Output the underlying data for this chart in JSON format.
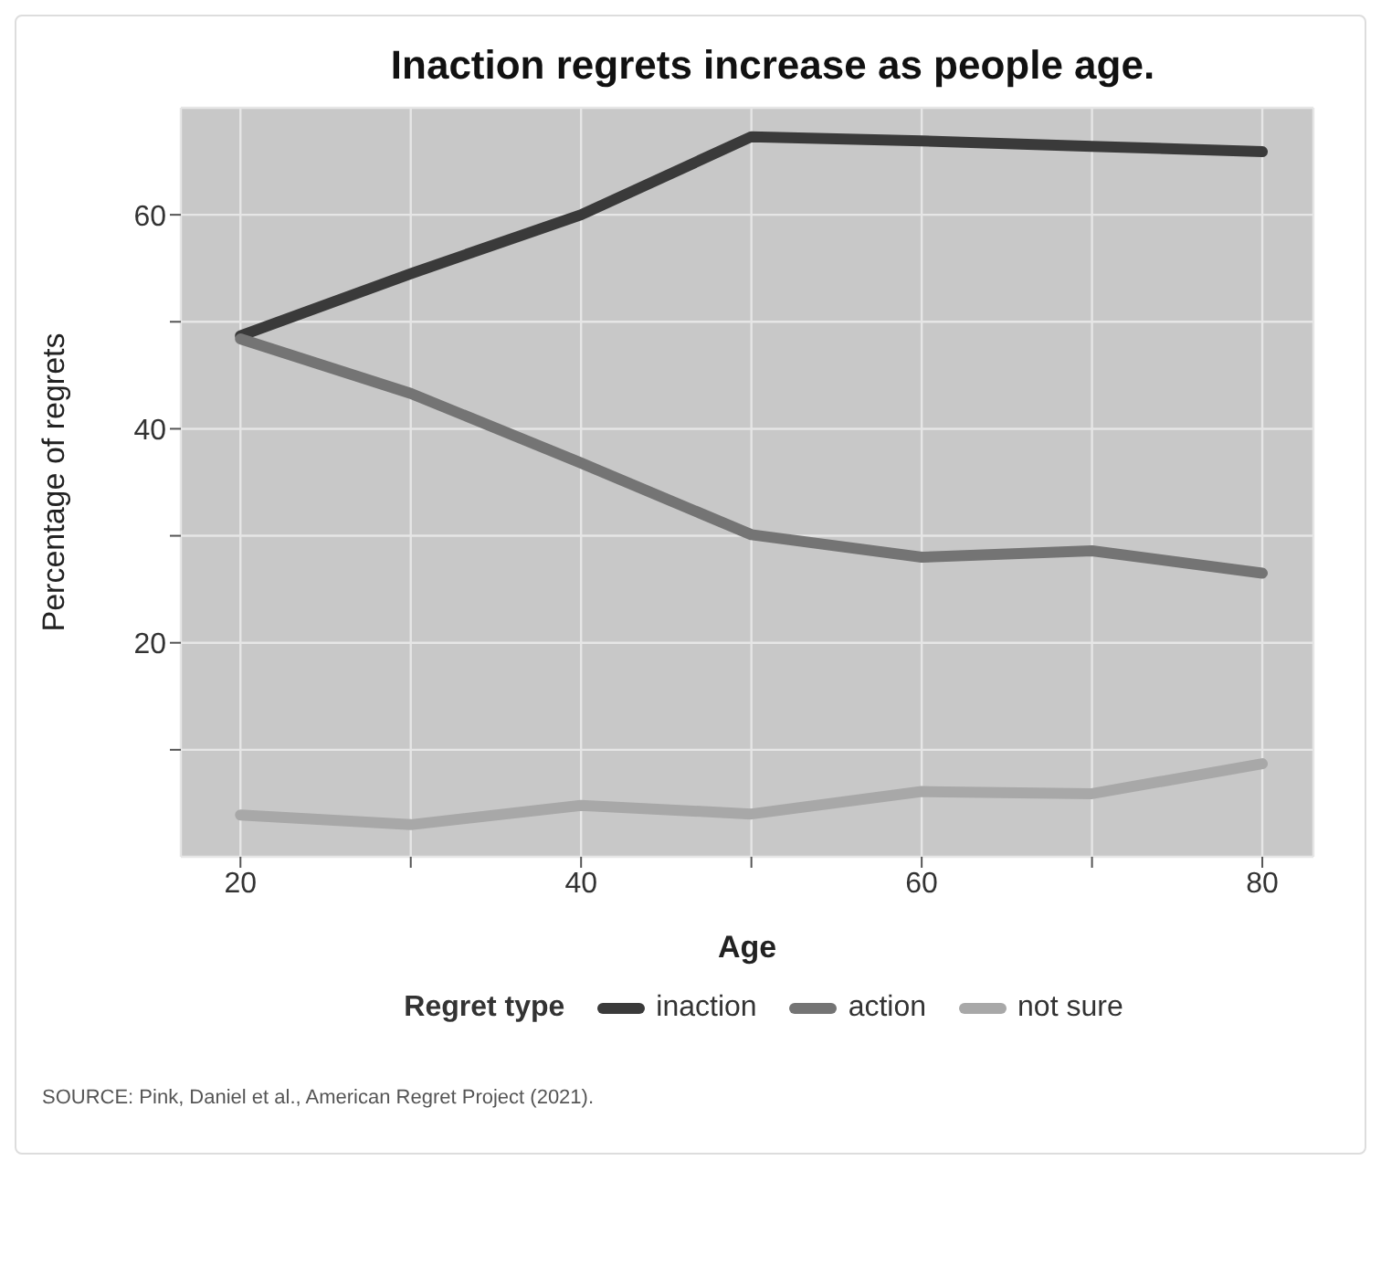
{
  "chart_data": {
    "type": "line",
    "title": "Inaction regrets increase as people age.",
    "xlabel": "Age",
    "ylabel": "Percentage of regrets",
    "legend_title": "Regret type",
    "x": [
      20,
      30,
      40,
      50,
      60,
      70,
      80
    ],
    "series": [
      {
        "name": "inaction",
        "color": "#3a3a3a",
        "values": [
          48.7,
          54.5,
          60,
          67.3,
          66.9,
          66.4,
          65.9
        ]
      },
      {
        "name": "action",
        "color": "#747474",
        "values": [
          48.4,
          43.3,
          36.8,
          30.1,
          28.0,
          28.6,
          26.5
        ]
      },
      {
        "name": "not sure",
        "color": "#a8a8a8",
        "values": [
          3.9,
          3.0,
          4.8,
          4.0,
          6.1,
          5.9,
          8.7
        ]
      }
    ],
    "xlim": [
      16.5,
      83
    ],
    "ylim": [
      0,
      70
    ],
    "xticks": [
      20,
      {
        "value": 30,
        "label": null
      },
      40,
      {
        "value": 50,
        "label": null
      },
      60,
      {
        "value": 70,
        "label": null
      },
      80
    ],
    "yticks": [
      {
        "value": 10,
        "label": null
      },
      20,
      {
        "value": 30,
        "label": null
      },
      40,
      {
        "value": 50,
        "label": null
      },
      60
    ],
    "grid": true,
    "legend": "bottom",
    "marker": "none",
    "line_style": "solid",
    "annotations": [
      "SOURCE: Pink, Daniel et al., American Regret Project (2021)."
    ]
  }
}
